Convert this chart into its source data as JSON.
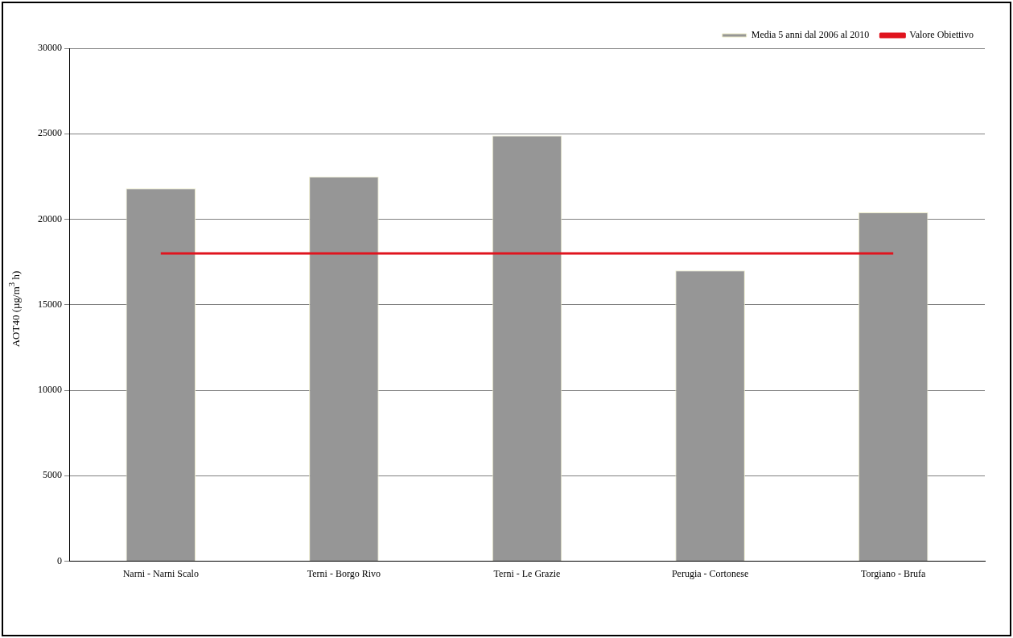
{
  "chart_data": {
    "type": "bar",
    "ylabel": "AOT40 (µg/m$^{3}$ h)",
    "categories": [
      "Narni - Narni Scalo",
      "Terni - Borgo Rivo",
      "Terni - Le Grazie",
      "Perugia - Cortonese",
      "Torgiano - Brufa"
    ],
    "series": [
      {
        "name": "Media 5 anni dal 2006 al 2010",
        "color": "#969696",
        "values": [
          21800,
          22500,
          24900,
          17000,
          20400
        ]
      },
      {
        "name": "Valore Obiettivo",
        "type": "line",
        "color": "#e0141e",
        "values": [
          18000,
          18000,
          18000,
          18000,
          18000
        ]
      }
    ],
    "ylim": [
      0,
      30000
    ],
    "yticks": [
      0,
      5000,
      10000,
      15000,
      20000,
      25000,
      30000
    ],
    "grid": "y",
    "legend": "top right",
    "marker": "none"
  }
}
